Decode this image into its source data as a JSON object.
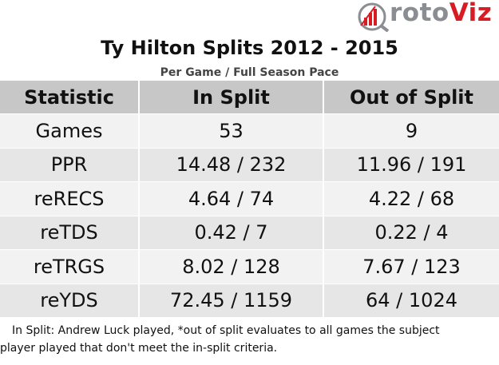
{
  "brand": {
    "logo_text_main": "roto",
    "logo_text_accent": "Viz",
    "accent_color": "#d71c24",
    "text_color": "#8a8d91",
    "icon": "bar-chart-magnifier-icon"
  },
  "title": "Ty Hilton Splits 2012 - 2015",
  "subtitle": "Per Game / Full Season Pace",
  "table": {
    "headers": [
      "Statistic",
      "In Split",
      "Out of Split"
    ],
    "rows": [
      [
        "Games",
        "53",
        "9"
      ],
      [
        "PPR",
        "14.48 / 232",
        "11.96 / 191"
      ],
      [
        "reRECS",
        "4.64 / 74",
        "4.22 / 68"
      ],
      [
        "reTDS",
        "0.42 / 7",
        "0.22 / 4"
      ],
      [
        "reTRGS",
        "8.02 / 128",
        "7.67 / 123"
      ],
      [
        "reYDS",
        "72.45 / 1159",
        "64 / 1024"
      ]
    ],
    "header_bg": "#c7c7c7",
    "row_bg_odd": "#f2f2f2",
    "row_bg_even": "#e6e6e6"
  },
  "footnote": {
    "line1": "In Split: Andrew Luck played,  *out of split evaluates to all games the subject",
    "line2": "player played that don't meet the in-split criteria."
  }
}
